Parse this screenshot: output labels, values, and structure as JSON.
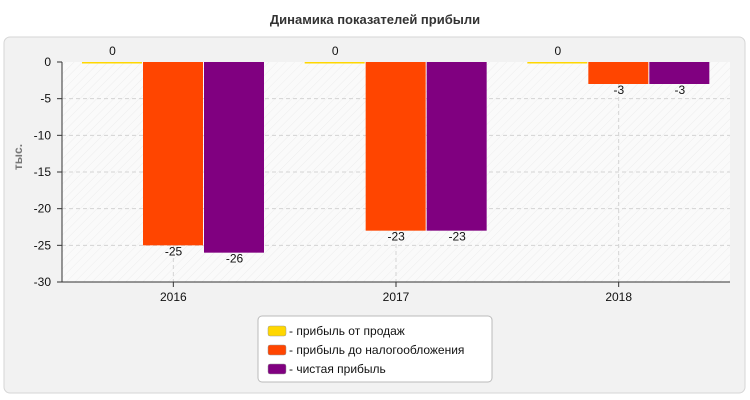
{
  "chart_data": {
    "type": "bar",
    "title": "Динамика показателей прибыли",
    "xlabel": "",
    "ylabel": "тыс.",
    "categories": [
      "2016",
      "2017",
      "2018"
    ],
    "ylim": [
      -30,
      0
    ],
    "yticks": [
      0,
      -5,
      -10,
      -15,
      -20,
      -25,
      -30
    ],
    "grid": true,
    "legend_position": "bottom-center",
    "series": [
      {
        "name": "- прибыль от продаж",
        "color": "#FFD700",
        "values": [
          0,
          0,
          0
        ]
      },
      {
        "name": "- прибыль до налогообложения",
        "color": "#FF4500",
        "values": [
          -25,
          -23,
          -3
        ]
      },
      {
        "name": "- чистая прибыль",
        "color": "#800080",
        "values": [
          -26,
          -23,
          -3
        ]
      }
    ]
  }
}
